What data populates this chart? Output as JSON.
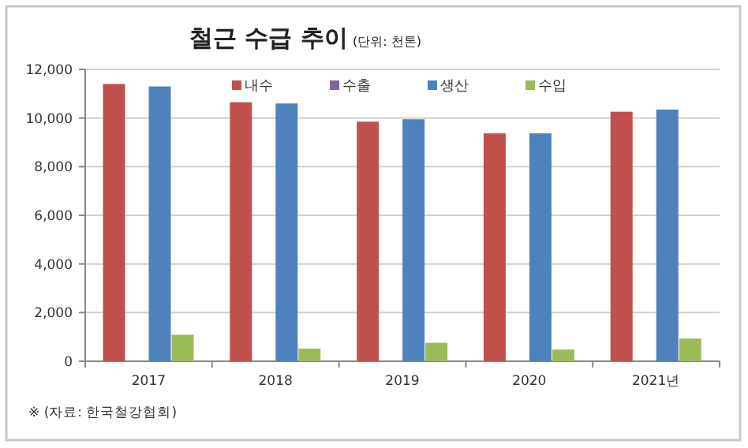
{
  "chart_data": {
    "type": "bar",
    "title": "철근 수급 추이",
    "subtitle": "(단위: 천톤)",
    "categories": [
      "2017",
      "2018",
      "2019",
      "2020",
      "2021년"
    ],
    "series": [
      {
        "name": "내수",
        "color": "#c0504d",
        "values": [
          11400,
          10650,
          9850,
          9370,
          10260
        ]
      },
      {
        "name": "수출",
        "color": "#8064a2",
        "values": [
          null,
          null,
          null,
          null,
          null
        ]
      },
      {
        "name": "생산",
        "color": "#4f81bd",
        "values": [
          11300,
          10600,
          9950,
          9370,
          10350
        ]
      },
      {
        "name": "수입",
        "color": "#9bbb59",
        "values": [
          1090,
          520,
          760,
          480,
          930
        ]
      }
    ],
    "ylim": [
      0,
      12000
    ],
    "yticks": [
      {
        "value": 0,
        "label": "0"
      },
      {
        "value": 2000,
        "label": "2,000"
      },
      {
        "value": 4000,
        "label": "4,000"
      },
      {
        "value": 6000,
        "label": "6,000"
      },
      {
        "value": 8000,
        "label": "8,000"
      },
      {
        "value": 10000,
        "label": "10,000"
      },
      {
        "value": 12000,
        "label": "12,000"
      }
    ],
    "grid": "y",
    "legend": "top",
    "annotations": [
      "※ (자료: 한국철강협회)"
    ]
  }
}
